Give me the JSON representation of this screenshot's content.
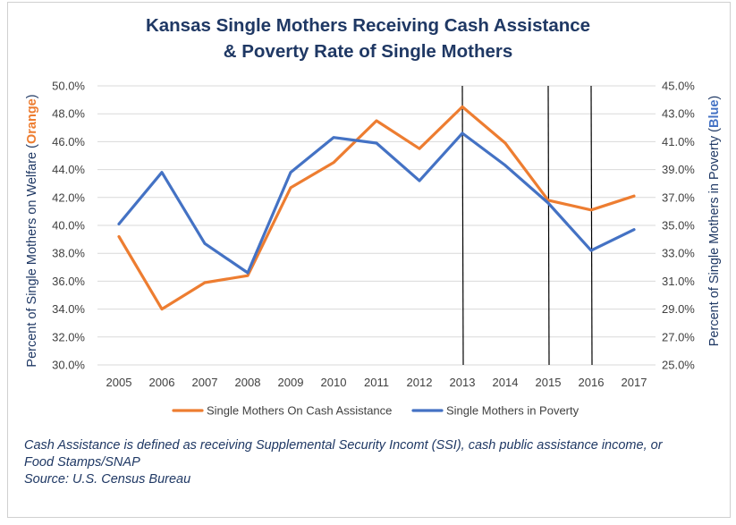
{
  "chart_data": {
    "type": "line",
    "title_lines": [
      "Kansas Single Mothers Receiving Cash Assistance",
      "& Poverty Rate of Single Mothers"
    ],
    "x": [
      "2005",
      "2006",
      "2007",
      "2008",
      "2009",
      "2010",
      "2011",
      "2012",
      "2013",
      "2014",
      "2015",
      "2016",
      "2017"
    ],
    "y_left": {
      "label_prefix": "Percent of Single Mothers on Welfare (",
      "label_highlight": "Orange",
      "label_suffix": ")",
      "ylim": [
        30,
        50
      ],
      "ticks": [
        "30.0%",
        "32.0%",
        "34.0%",
        "36.0%",
        "38.0%",
        "40.0%",
        "42.0%",
        "44.0%",
        "46.0%",
        "48.0%",
        "50.0%"
      ]
    },
    "y_right": {
      "label_prefix": "Percent of Single Mothers in Poverty (",
      "label_highlight": "Blue",
      "label_suffix": ")",
      "ylim": [
        25,
        45
      ],
      "ticks": [
        "25.0%",
        "27.0%",
        "29.0%",
        "31.0%",
        "33.0%",
        "35.0%",
        "37.0%",
        "39.0%",
        "41.0%",
        "43.0%",
        "45.0%"
      ]
    },
    "series": [
      {
        "name": "Single Mothers On Cash Assistance",
        "axis": "left",
        "color": "#ed7d31",
        "values": [
          39.2,
          34.0,
          35.9,
          36.4,
          42.7,
          44.5,
          47.5,
          45.5,
          48.5,
          45.9,
          41.8,
          41.1,
          42.1
        ]
      },
      {
        "name": "Single Mothers in Poverty",
        "axis": "right",
        "color": "#4472c4",
        "values": [
          35.1,
          38.8,
          33.7,
          31.6,
          38.8,
          41.3,
          40.9,
          38.2,
          41.6,
          39.3,
          36.6,
          33.2,
          34.7
        ]
      }
    ],
    "vertical_markers": [
      "2013",
      "2015",
      "2016"
    ],
    "grid": true,
    "legend_position": "bottom"
  },
  "colors": {
    "title": "#1f3864",
    "axis_label": "#1f3864",
    "tick_label": "#404040",
    "gridline": "#d9d9d9",
    "orange": "#ed7d31",
    "blue": "#4472c4",
    "marker_line": "#000000"
  },
  "notes": [
    "Cash Assistance is defined as receiving Supplemental Security Incomt (SSI), cash public assistance income, or",
    "Food Stamps/SNAP",
    "Source: U.S. Census Bureau"
  ]
}
